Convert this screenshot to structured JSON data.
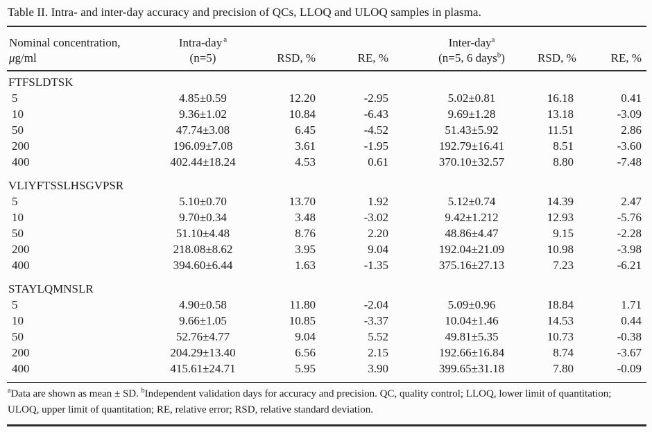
{
  "title": "Table II. Intra- and inter-day accuracy and precision of QCs, LLOQ and ULOQ samples in plasma.",
  "header": {
    "col1_line1": "Nominal concentration,",
    "col1_mu": "μ",
    "col1_unit": "g/ml",
    "intra_label": "Intra-day",
    "intra_sup": "a",
    "intra_n": "(n=5)",
    "rsd1": "RSD, %",
    "re1": "RE, %",
    "inter_label": "Inter-day",
    "inter_sup": "a",
    "inter_n_pre": "(n=5, 6 days",
    "inter_n_sup": "b",
    "inter_n_post": ")",
    "rsd2": "RSD, %",
    "re2": "RE, %"
  },
  "sections": [
    {
      "name": "FTFSLDTSK",
      "rows": [
        {
          "conc": "5",
          "intra": "4.85±0.59",
          "rsd1": "12.20",
          "re1": "-2.95",
          "inter": "5.02±0.81",
          "rsd2": "16.18",
          "re2": "0.41"
        },
        {
          "conc": "10",
          "intra": "9.36±1.02",
          "rsd1": "10.84",
          "re1": "-6.43",
          "inter": "9.69±1.28",
          "rsd2": "13.18",
          "re2": "-3.09"
        },
        {
          "conc": "50",
          "intra": "47.74±3.08",
          "rsd1": "6.45",
          "re1": "-4.52",
          "inter": "51.43±5.92",
          "rsd2": "11.51",
          "re2": "2.86"
        },
        {
          "conc": "200",
          "intra": "196.09±7.08",
          "rsd1": "3.61",
          "re1": "-1.95",
          "inter": "192.79±16.41",
          "rsd2": "8.51",
          "re2": "-3.60"
        },
        {
          "conc": "400",
          "intra": "402.44±18.24",
          "rsd1": "4.53",
          "re1": "0.61",
          "inter": "370.10±32.57",
          "rsd2": "8.80",
          "re2": "-7.48"
        }
      ]
    },
    {
      "name": "VLIYFTSSLHSGVPSR",
      "rows": [
        {
          "conc": "5",
          "intra": "5.10±0.70",
          "rsd1": "13.70",
          "re1": "1.92",
          "inter": "5.12±0.74",
          "rsd2": "14.39",
          "re2": "2.47"
        },
        {
          "conc": "10",
          "intra": "9.70±0.34",
          "rsd1": "3.48",
          "re1": "-3.02",
          "inter": "9.42±1.212",
          "rsd2": "12.93",
          "re2": "-5.76"
        },
        {
          "conc": "50",
          "intra": "51.10±4.48",
          "rsd1": "8.76",
          "re1": "2.20",
          "inter": "48.86±4.47",
          "rsd2": "9.15",
          "re2": "-2.28"
        },
        {
          "conc": "200",
          "intra": "218.08±8.62",
          "rsd1": "3.95",
          "re1": "9.04",
          "inter": "192.04±21.09",
          "rsd2": "10.98",
          "re2": "-3.98"
        },
        {
          "conc": "400",
          "intra": "394.60±6.44",
          "rsd1": "1.63",
          "re1": "-1.35",
          "inter": "375.16±27.13",
          "rsd2": "7.23",
          "re2": "-6.21"
        }
      ]
    },
    {
      "name": "STAYLQMNSLR",
      "rows": [
        {
          "conc": "5",
          "intra": "4.90±0.58",
          "rsd1": "11.80",
          "re1": "-2.04",
          "inter": "5.09±0.96",
          "rsd2": "18.84",
          "re2": "1.71"
        },
        {
          "conc": "10",
          "intra": "9.66±1.05",
          "rsd1": "10.85",
          "re1": "-3.37",
          "inter": "10.04±1.46",
          "rsd2": "14.53",
          "re2": "0.44"
        },
        {
          "conc": "50",
          "intra": "52.76±4.77",
          "rsd1": "9.04",
          "re1": "5.52",
          "inter": "49.81±5.35",
          "rsd2": "10.73",
          "re2": "-0.38"
        },
        {
          "conc": "200",
          "intra": "204.29±13.40",
          "rsd1": "6.56",
          "re1": "2.15",
          "inter": "192.66±16.84",
          "rsd2": "8.74",
          "re2": "-3.67"
        },
        {
          "conc": "400",
          "intra": "415.61±24.71",
          "rsd1": "5.95",
          "re1": "3.90",
          "inter": "399.65±31.18",
          "rsd2": "7.80",
          "re2": "-0.09"
        }
      ]
    }
  ],
  "footnote": {
    "sup_a": "a",
    "text_a": "Data are shown as mean ± SD. ",
    "sup_b": "b",
    "text_b1": "Independent validation days for accuracy and precision. QC, quality control; LLOQ, lower limit of quantitation;",
    "text_b2": "ULOQ, upper limit of quantitation; RE, relative error; RSD, relative standard deviation."
  },
  "colors": {
    "text": "#1d1d1d",
    "rule": "#2b2b2b",
    "background": "#fcfcfc"
  }
}
